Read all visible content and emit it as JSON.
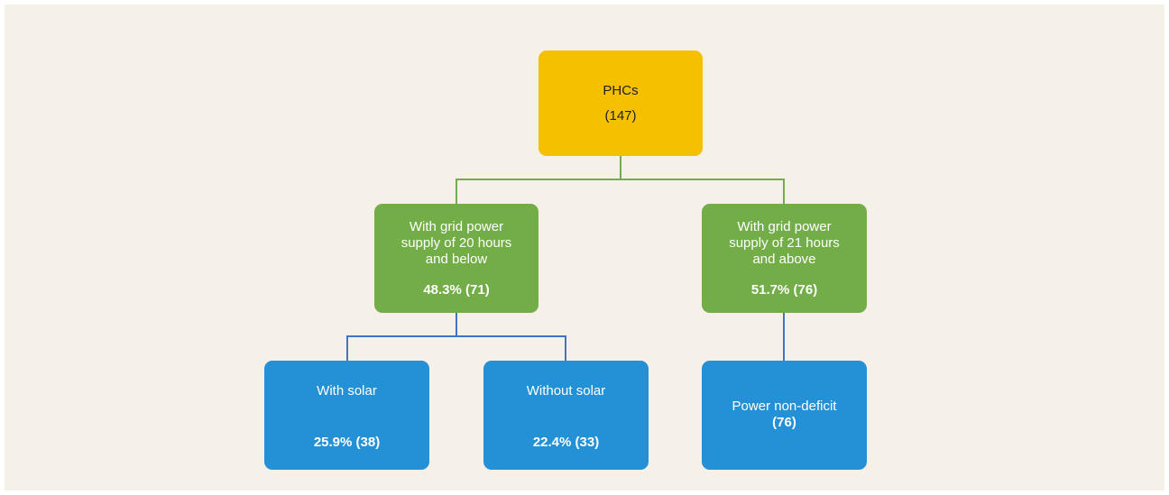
{
  "nodes": [
    {
      "lines": [
        "PHCs"
      ],
      "value": "(147)"
    },
    {
      "lines": [
        "With grid power",
        "supply of 20 hours",
        "and below"
      ],
      "value": "48.3% (71)"
    },
    {
      "lines": [
        "With grid power",
        "supply of 21 hours",
        "and above"
      ],
      "value": "51.7% (76)"
    },
    {
      "lines": [
        "With solar"
      ],
      "value": "25.9% (38)"
    },
    {
      "lines": [
        "Without solar"
      ],
      "value": "22.4% (33)"
    },
    {
      "lines": [
        "Power non-deficit"
      ],
      "value": "(76)"
    }
  ]
}
